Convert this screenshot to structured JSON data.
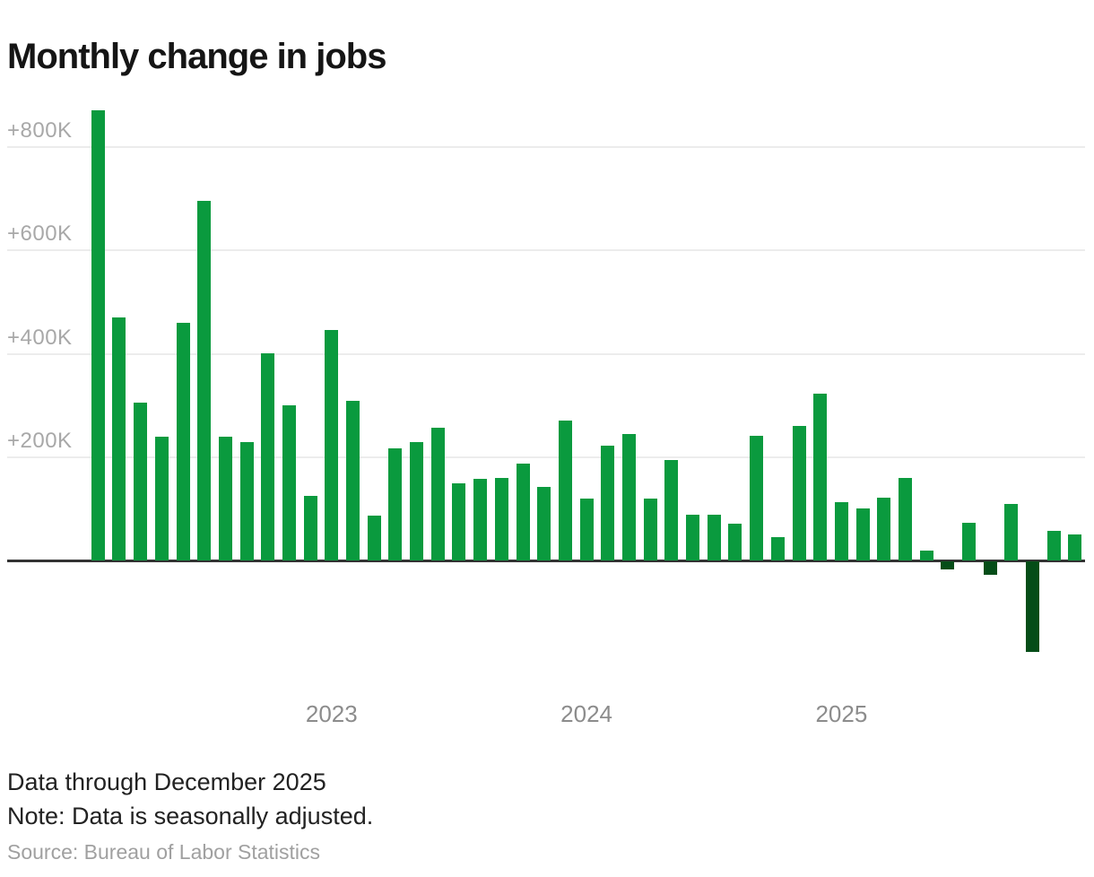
{
  "header": {
    "title": "Monthly change in jobs"
  },
  "footer": {
    "data_through": "Data through December 2025",
    "note": "Note: Data is seasonally adjusted.",
    "source": "Source: Bureau of Labor Statistics"
  },
  "chart_data": {
    "type": "bar",
    "title": "Monthly change in jobs",
    "unit": "thousands of jobs",
    "grid": "horizontal",
    "legend_position": "none",
    "ylim": [
      -200,
      900
    ],
    "positive_color": "#0a9a3e",
    "negative_color": "#054d18",
    "y_ticks": [
      {
        "value": 200,
        "label": "+200K"
      },
      {
        "value": 400,
        "label": "+400K"
      },
      {
        "value": 600,
        "label": "+600K"
      },
      {
        "value": 800,
        "label": "+800K"
      }
    ],
    "x_year_labels": [
      "2023",
      "2024",
      "2025"
    ],
    "x": [
      "Feb 2022",
      "Mar 2022",
      "Apr 2022",
      "May 2022",
      "Jun 2022",
      "Jul 2022",
      "Aug 2022",
      "Sep 2022",
      "Oct 2022",
      "Nov 2022",
      "Dec 2022",
      "Jan 2023",
      "Feb 2023",
      "Mar 2023",
      "Apr 2023",
      "May 2023",
      "Jun 2023",
      "Jul 2023",
      "Aug 2023",
      "Sep 2023",
      "Oct 2023",
      "Nov 2023",
      "Dec 2023",
      "Jan 2024",
      "Feb 2024",
      "Mar 2024",
      "Apr 2024",
      "May 2024",
      "Jun 2024",
      "Jul 2024",
      "Aug 2024",
      "Sep 2024",
      "Oct 2024",
      "Nov 2024",
      "Dec 2024",
      "Jan 2025",
      "Feb 2025",
      "Mar 2025",
      "Apr 2025",
      "May 2025",
      "Jun 2025",
      "Jul 2025",
      "Aug 2025",
      "Sep 2025",
      "Oct 2025",
      "Nov 2025",
      "Dec 2025"
    ],
    "values": [
      870,
      470,
      305,
      240,
      460,
      695,
      240,
      228,
      400,
      300,
      125,
      445,
      308,
      87,
      217,
      229,
      257,
      149,
      158,
      159,
      187,
      142,
      270,
      120,
      222,
      245,
      119,
      194,
      88,
      88,
      71,
      241,
      45,
      260,
      323,
      113,
      101,
      121,
      159,
      20,
      -14,
      73,
      -25,
      110,
      -173,
      58,
      50
    ]
  }
}
